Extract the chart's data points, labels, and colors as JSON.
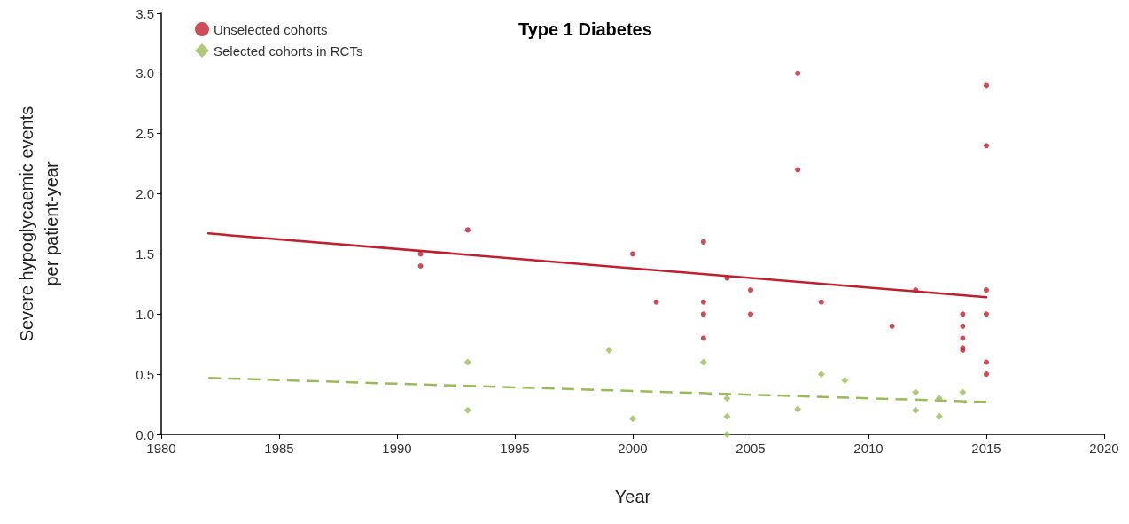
{
  "chart_data": {
    "type": "scatter",
    "title": "Type 1 Diabetes",
    "xlabel": "Year",
    "ylabel": "Severe hypoglycaemic events\nper patient-year",
    "xlim": [
      1980,
      2020
    ],
    "xticks": [
      1980,
      1985,
      1990,
      1995,
      2000,
      2005,
      2010,
      2015,
      2020
    ],
    "ylim": [
      0,
      3.5
    ],
    "yticks": [
      {
        "value": 0,
        "label": "0.0"
      },
      0.5,
      {
        "value": 1,
        "label": "1.0"
      },
      1.5,
      {
        "value": 2,
        "label": "2.0"
      },
      2.5,
      {
        "value": 3,
        "label": "3.0"
      },
      3.5
    ],
    "grid": false,
    "legend": "top left",
    "series": [
      {
        "name": "Unselected cohorts",
        "color": "#c0202e",
        "marker": "circle",
        "x": [
          1991,
          1991,
          1993,
          2000,
          2001,
          2003,
          2003,
          2003,
          2003,
          2004,
          2005,
          2005,
          2007,
          2007,
          2008,
          2011,
          2012,
          2014,
          2014,
          2014,
          2014,
          2014,
          2015,
          2015,
          2015,
          2015,
          2015,
          2015
        ],
        "values": [
          1.5,
          1.4,
          1.7,
          1.5,
          1.1,
          1.6,
          1.1,
          1.0,
          0.8,
          1.3,
          1.2,
          1.0,
          3.0,
          2.2,
          1.1,
          0.9,
          1.2,
          1.0,
          0.9,
          0.8,
          0.72,
          0.7,
          2.9,
          2.4,
          1.2,
          1.0,
          0.6,
          0.5
        ]
      },
      {
        "name": "Selected cohorts in RCTs",
        "color": "#9bbb59",
        "marker": "diamond",
        "x": [
          1993,
          1993,
          1999,
          2000,
          2003,
          2004,
          2004,
          2004,
          2007,
          2008,
          2009,
          2012,
          2012,
          2013,
          2013,
          2014
        ],
        "values": [
          0.6,
          0.2,
          0.7,
          0.13,
          0.6,
          0.3,
          0.15,
          0.0,
          0.21,
          0.5,
          0.45,
          0.35,
          0.2,
          0.3,
          0.15,
          0.35
        ]
      },
      {
        "type": "line",
        "color": "#c0202e",
        "line_style": "solid",
        "marker": "none",
        "x": [
          1982,
          2015
        ],
        "values": [
          1.67,
          1.14
        ]
      },
      {
        "type": "line",
        "color": "#9bbb59",
        "line_style": "dashed",
        "marker": "none",
        "x": [
          1982,
          2015
        ],
        "values": [
          0.47,
          0.27
        ]
      }
    ]
  }
}
